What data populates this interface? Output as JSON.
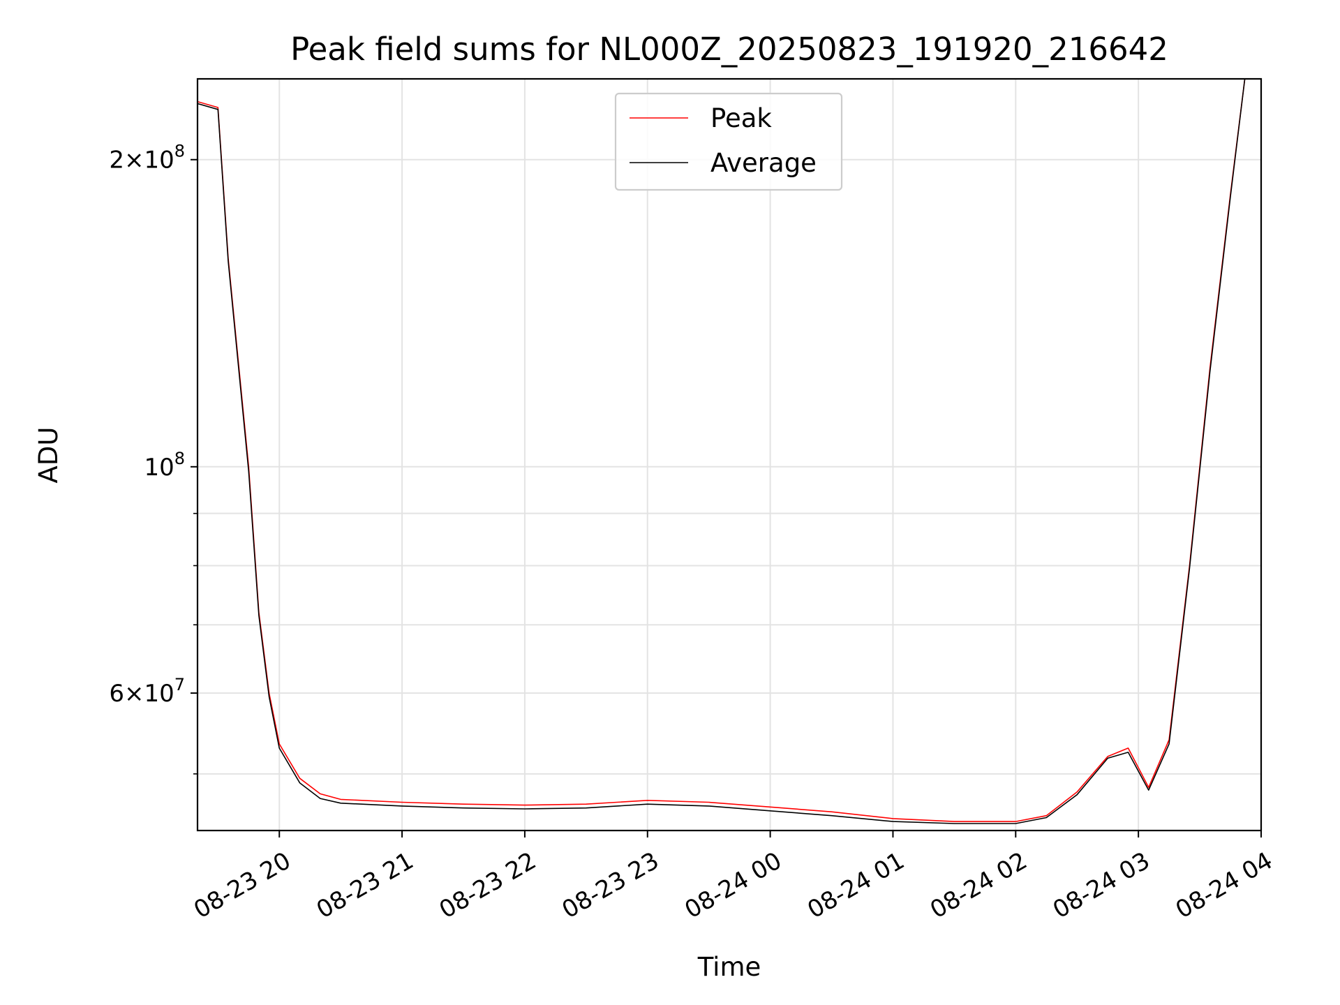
{
  "chart_data": {
    "type": "line",
    "title": "Peak field sums for NL000Z_20250823_191920_216642",
    "xlabel": "Time",
    "ylabel": "ADU",
    "yscale": "log",
    "ylim": [
      44000000,
      240000000
    ],
    "xlim": [
      "2025-08-23 19:20",
      "2025-08-24 04:00"
    ],
    "grid": true,
    "legend_position": "top-center",
    "x_ticks": [
      "08-23 20",
      "08-23 21",
      "08-23 22",
      "08-23 23",
      "08-24 00",
      "08-24 01",
      "08-24 02",
      "08-24 03",
      "08-24 04"
    ],
    "y_tick_labels": [
      {
        "value": 200000000,
        "mantissa": "2",
        "exponent": "8"
      },
      {
        "value": 100000000,
        "mantissa": "",
        "exponent": "8"
      },
      {
        "value": 60000000,
        "mantissa": "6",
        "exponent": "7"
      }
    ],
    "y_minor_ticks": [
      50000000,
      70000000,
      80000000,
      90000000
    ],
    "x": [
      "2025-08-23 19:20",
      "2025-08-23 19:30",
      "2025-08-23 19:35",
      "2025-08-23 19:45",
      "2025-08-23 19:50",
      "2025-08-23 19:55",
      "2025-08-23 20:00",
      "2025-08-23 20:10",
      "2025-08-23 20:20",
      "2025-08-23 20:30",
      "2025-08-23 21:00",
      "2025-08-23 21:30",
      "2025-08-23 22:00",
      "2025-08-23 22:30",
      "2025-08-23 23:00",
      "2025-08-23 23:30",
      "2025-08-24 00:00",
      "2025-08-24 00:30",
      "2025-08-24 01:00",
      "2025-08-24 01:30",
      "2025-08-24 02:00",
      "2025-08-24 02:15",
      "2025-08-24 02:30",
      "2025-08-24 02:45",
      "2025-08-24 02:55",
      "2025-08-24 03:05",
      "2025-08-24 03:15",
      "2025-08-24 03:25",
      "2025-08-24 03:35",
      "2025-08-24 03:45",
      "2025-08-24 03:52"
    ],
    "series": [
      {
        "name": "Peak",
        "color": "#ff0000",
        "values": [
          228000000,
          225000000,
          160000000,
          100000000,
          72000000,
          60000000,
          53500000,
          49500000,
          47800000,
          47200000,
          46900000,
          46700000,
          46600000,
          46700000,
          47100000,
          46900000,
          46400000,
          45900000,
          45200000,
          44900000,
          44900000,
          45500000,
          48000000,
          52000000,
          53000000,
          48500000,
          54000000,
          80000000,
          125000000,
          185000000,
          240000000
        ]
      },
      {
        "name": "Average",
        "color": "#000000",
        "values": [
          227000000,
          224000000,
          159000000,
          99000000,
          71500000,
          59500000,
          53000000,
          49000000,
          47300000,
          46800000,
          46500000,
          46300000,
          46200000,
          46300000,
          46700000,
          46500000,
          46000000,
          45500000,
          44900000,
          44700000,
          44700000,
          45300000,
          47700000,
          51800000,
          52500000,
          48200000,
          53500000,
          79500000,
          124000000,
          184000000,
          240000000
        ]
      }
    ]
  }
}
